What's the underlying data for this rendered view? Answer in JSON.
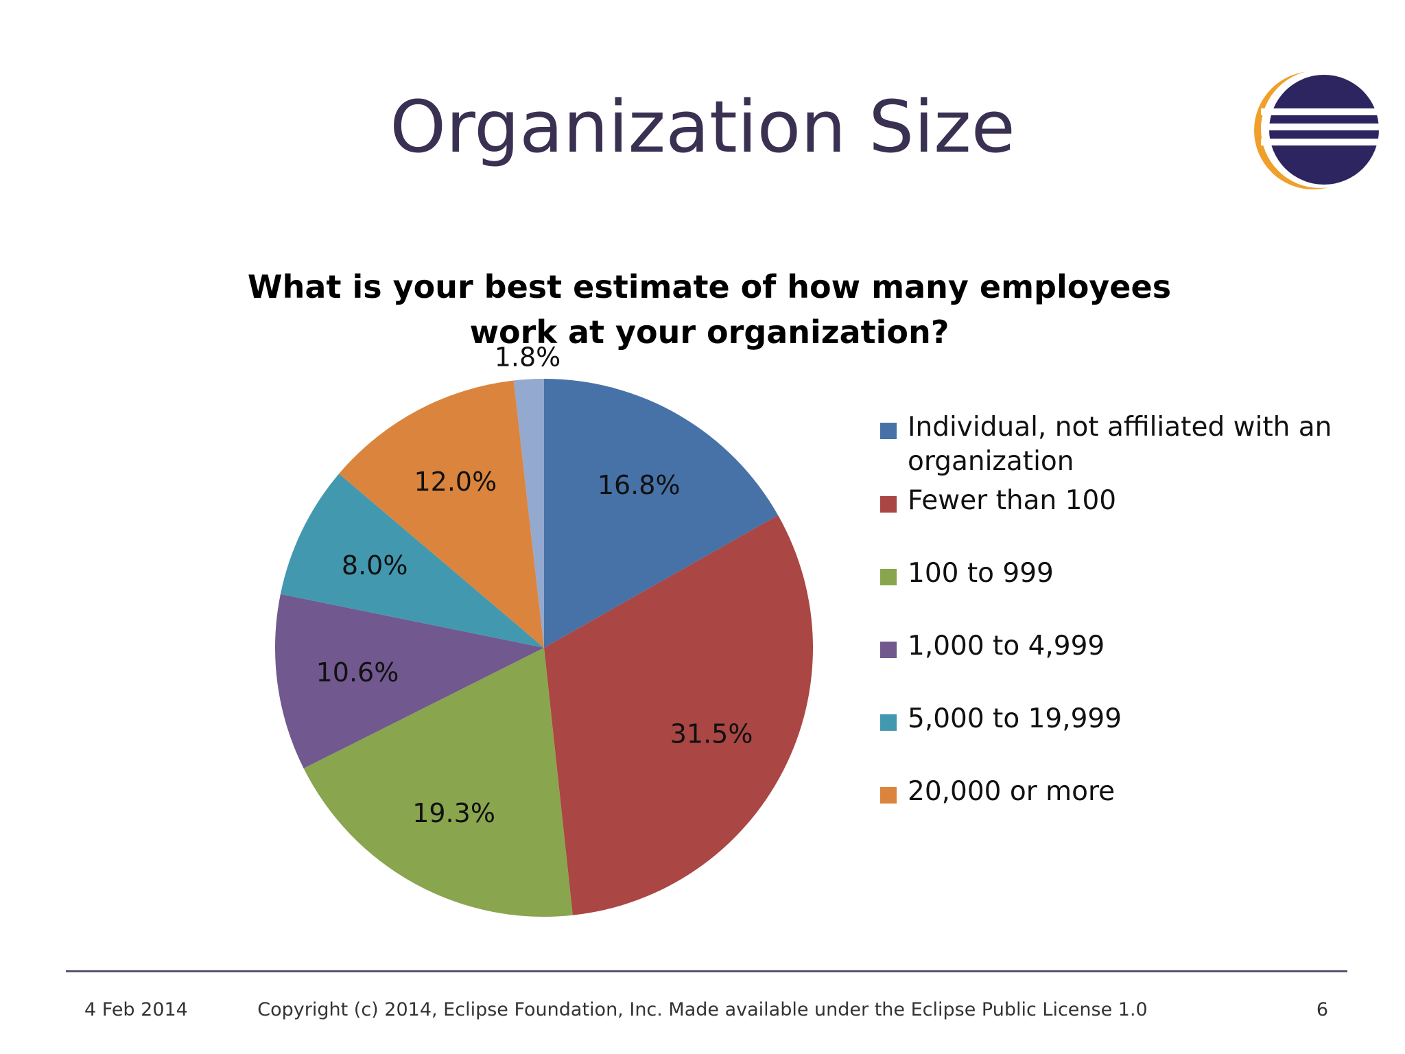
{
  "slide": {
    "title": "Organization Size",
    "footer": {
      "date": "4 Feb 2014",
      "copyright": "Copyright (c) 2014, Eclipse Foundation, Inc. Made available under the Eclipse Public License 1.0",
      "page_number": "6"
    },
    "logo": {
      "icon": "eclipse-logo-icon",
      "colors": {
        "ring": "#f0a02a",
        "disc": "#2c2560",
        "stripes": "#ffffff"
      }
    }
  },
  "chart_data": {
    "type": "pie",
    "title": "What is your best estimate of how many employees work at your organization?",
    "start_angle_deg": 0,
    "direction": "clockwise",
    "legend_position": "right",
    "slices": [
      {
        "label": "Individual, not affiliated with an organization",
        "value": 16.8,
        "value_label": "16.8%",
        "color": "#4672a8"
      },
      {
        "label": "Fewer than 100",
        "value": 31.5,
        "value_label": "31.5%",
        "color": "#aa4644"
      },
      {
        "label": "100 to 999",
        "value": 19.3,
        "value_label": "19.3%",
        "color": "#89a54e"
      },
      {
        "label": "1,000 to 4,999",
        "value": 10.6,
        "value_label": "10.6%",
        "color": "#71588f"
      },
      {
        "label": "5,000 to 19,999",
        "value": 8.0,
        "value_label": "8.0%",
        "color": "#4298af"
      },
      {
        "label": "20,000 or more",
        "value": 12.0,
        "value_label": "12.0%",
        "color": "#db843d"
      },
      {
        "label": "",
        "value": 1.8,
        "value_label": "1.8%",
        "color": "#93a9cf"
      }
    ]
  }
}
